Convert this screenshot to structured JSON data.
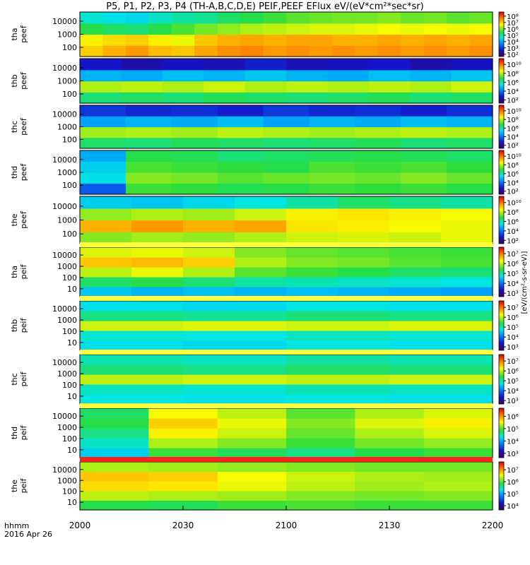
{
  "chart_data": {
    "type": "heatmap",
    "title": "P5, P1, P2, P3, P4 (TH-A,B,C,D,E) PEIF,PEEF EFlux eV/(eV*cm²*sec*sr)",
    "x_tick_labels": [
      "2000",
      "2030",
      "2100",
      "2130",
      "2200"
    ],
    "x_range_label": [
      "2000",
      "2200"
    ],
    "x_annotation": [
      "hhmm",
      "2016 Apr 26"
    ],
    "colorbar_label": "[eV/(cm²-s-sr-eV)]",
    "panels": [
      {
        "probe": "tha",
        "product": "peef",
        "y_ticks": [
          "100",
          "1000",
          "10000"
        ],
        "cbar_ticks": [
          "10²",
          "10³",
          "10⁴",
          "10⁵",
          "10⁶",
          "10⁷",
          "10⁸"
        ],
        "values": [
          [
            6.5,
            6.2,
            4.6,
            3.7
          ],
          [
            6.8,
            6.4,
            4.4,
            3.5
          ],
          [
            7.0,
            6.5,
            4.3,
            3.4
          ],
          [
            6.7,
            6.2,
            4.6,
            3.8
          ],
          [
            6.6,
            6.0,
            4.9,
            4.0
          ],
          [
            6.9,
            6.6,
            5.2,
            4.1
          ],
          [
            7.1,
            6.8,
            5.4,
            4.4
          ],
          [
            7.2,
            6.9,
            5.6,
            4.6
          ],
          [
            7.0,
            6.8,
            5.7,
            4.8
          ],
          [
            7.1,
            6.9,
            5.8,
            5.0
          ],
          [
            7.0,
            6.9,
            5.9,
            5.1
          ],
          [
            7.1,
            6.8,
            5.9,
            5.2
          ],
          [
            7.0,
            6.8,
            6.0,
            5.2
          ],
          [
            7.1,
            6.9,
            6.1,
            5.3
          ],
          [
            7.0,
            6.8,
            6.0,
            5.1
          ],
          [
            7.1,
            6.9,
            6.1,
            5.2
          ],
          [
            7.0,
            6.8,
            6.0,
            5.0
          ],
          [
            7.1,
            6.9,
            6.1,
            5.1
          ]
        ]
      },
      {
        "probe": "thb",
        "product": "peef",
        "y_ticks": [
          "100",
          "1000",
          "10000"
        ],
        "cbar_ticks": [
          "10²",
          "10⁴",
          "10⁶",
          "10⁸",
          "10¹⁰"
        ],
        "values": [
          [
            4.3,
            5.6,
            3.0,
            1.2
          ],
          [
            4.4,
            5.7,
            2.9,
            0.9
          ],
          [
            4.3,
            5.6,
            3.1,
            1.1
          ],
          [
            4.5,
            5.8,
            3.0,
            1.0
          ],
          [
            4.4,
            5.6,
            3.2,
            1.3
          ],
          [
            4.3,
            5.7,
            3.0,
            1.0
          ],
          [
            4.4,
            5.6,
            2.9,
            1.1
          ],
          [
            4.5,
            5.7,
            3.1,
            1.2
          ],
          [
            4.3,
            5.6,
            3.0,
            0.9
          ],
          [
            4.4,
            5.8,
            3.2,
            1.1
          ]
        ]
      },
      {
        "probe": "thc",
        "product": "peef",
        "y_ticks": [
          "100",
          "1000",
          "10000"
        ],
        "cbar_ticks": [
          "10²",
          "10⁴",
          "10⁶",
          "10⁸",
          "10¹⁰"
        ],
        "values": [
          [
            4.4,
            5.5,
            2.8,
            1.6
          ],
          [
            4.3,
            5.6,
            3.0,
            1.4
          ],
          [
            4.5,
            5.5,
            2.9,
            1.5
          ],
          [
            4.4,
            5.7,
            3.1,
            1.3
          ],
          [
            4.3,
            5.6,
            2.8,
            1.6
          ],
          [
            4.4,
            5.5,
            3.0,
            1.4
          ],
          [
            4.5,
            5.6,
            2.9,
            1.5
          ],
          [
            4.3,
            5.7,
            3.1,
            1.3
          ],
          [
            4.4,
            5.6,
            3.0,
            1.5
          ]
        ]
      },
      {
        "probe": "thd",
        "product": "peef",
        "y_ticks": [
          "100",
          "1000",
          "10000"
        ],
        "cbar_ticks": [
          "10²",
          "10⁴",
          "10⁶",
          "10⁸",
          "10¹⁰"
        ],
        "values": [
          [
            2.0,
            3.5,
            3.3,
            2.9
          ],
          [
            4.8,
            5.3,
            4.9,
            4.6
          ],
          [
            4.7,
            5.2,
            4.8,
            4.5
          ],
          [
            4.5,
            5.0,
            4.7,
            4.3
          ],
          [
            4.6,
            5.1,
            4.6,
            4.4
          ],
          [
            4.8,
            5.2,
            4.9,
            4.5
          ],
          [
            4.7,
            5.1,
            4.8,
            4.6
          ],
          [
            4.8,
            5.3,
            4.9,
            4.5
          ],
          [
            4.6,
            5.1,
            4.7,
            4.4
          ]
        ]
      },
      {
        "probe": "the",
        "product": "peef",
        "y_ticks": [
          "100",
          "1000",
          "10000"
        ],
        "cbar_ticks": [
          "10²",
          "10⁴",
          "10⁶",
          "10⁸",
          "10¹⁰"
        ],
        "values": [
          [
            5.3,
            6.8,
            5.4,
            3.3
          ],
          [
            5.5,
            7.0,
            5.6,
            3.2
          ],
          [
            5.4,
            6.8,
            5.5,
            3.4
          ],
          [
            5.6,
            6.9,
            5.8,
            3.6
          ],
          [
            5.8,
            6.3,
            6.2,
            4.0
          ],
          [
            5.9,
            6.2,
            6.3,
            4.4
          ],
          [
            5.8,
            6.1,
            6.2,
            4.2
          ],
          [
            6.0,
            6.0,
            6.1,
            4.0
          ]
        ]
      },
      {
        "probe": "tha",
        "product": "peif",
        "y_ticks": [
          "10",
          "100",
          "1000",
          "10000"
        ],
        "cbar_ticks": [
          "10³",
          "10⁴",
          "10⁵",
          "10⁶",
          "10⁷"
        ],
        "values": [
          [
            3.2,
            4.4,
            5.7,
            6.6,
            5.9
          ],
          [
            3.0,
            4.6,
            6.0,
            6.7,
            6.0
          ],
          [
            3.1,
            4.3,
            5.6,
            6.5,
            5.8
          ],
          [
            3.0,
            4.0,
            5.0,
            5.6,
            5.3
          ],
          [
            3.1,
            3.9,
            4.8,
            5.3,
            5.1
          ],
          [
            3.0,
            3.8,
            4.6,
            5.2,
            5.0
          ],
          [
            2.9,
            3.7,
            4.4,
            5.0,
            4.9
          ],
          [
            2.8,
            3.6,
            4.3,
            4.9,
            4.8
          ]
        ]
      },
      {
        "probe": "thb",
        "product": "peif",
        "y_ticks": [
          "10",
          "100",
          "1000",
          "10000"
        ],
        "cbar_ticks": [
          "10³",
          "10⁴",
          "10⁵",
          "10⁶",
          "10⁷"
        ],
        "values": [
          [
            3.5,
            3.7,
            5.8,
            4.2,
            3.5
          ],
          [
            3.4,
            3.6,
            5.9,
            4.1,
            3.4
          ],
          [
            3.6,
            3.8,
            5.8,
            4.3,
            3.6
          ],
          [
            3.5,
            3.7,
            5.9,
            4.2,
            3.5
          ]
        ]
      },
      {
        "probe": "thc",
        "product": "peif",
        "y_ticks": [
          "10",
          "100",
          "1000",
          "10000"
        ],
        "cbar_ticks": [
          "10³",
          "10⁴",
          "10⁵",
          "10⁶",
          "10⁷"
        ],
        "values": [
          [
            3.6,
            3.8,
            5.7,
            4.3,
            3.9
          ],
          [
            3.5,
            3.7,
            5.8,
            4.2,
            3.8
          ],
          [
            3.6,
            3.9,
            5.7,
            4.4,
            4.0
          ],
          [
            3.5,
            3.8,
            5.8,
            4.3,
            3.9
          ]
        ]
      },
      {
        "probe": "thd",
        "product": "peif",
        "y_ticks": [
          "10",
          "100",
          "1000",
          "10000"
        ],
        "cbar_ticks": [
          "10³",
          "10⁴",
          "10⁵",
          "10⁶"
        ],
        "values": [
          [
            3.3,
            3.8,
            4.2,
            4.6,
            4.4
          ],
          [
            4.8,
            5.6,
            6.2,
            6.5,
            6.1
          ],
          [
            4.5,
            5.3,
            5.8,
            6.0,
            5.7
          ],
          [
            4.2,
            4.8,
            5.1,
            5.3,
            5.0
          ],
          [
            4.6,
            5.2,
            5.6,
            5.9,
            5.6
          ],
          [
            4.8,
            5.4,
            5.9,
            6.2,
            5.9
          ]
        ]
      },
      {
        "probe": "the",
        "product": "peif",
        "y_ticks": [
          "10",
          "100",
          "1000",
          "10000"
        ],
        "cbar_ticks": [
          "10⁴",
          "10⁵",
          "10⁶",
          "10⁷"
        ],
        "values": [
          [
            4.6,
            5.7,
            6.4,
            6.6,
            5.6
          ],
          [
            4.5,
            5.6,
            6.3,
            6.5,
            5.5
          ],
          [
            4.8,
            5.5,
            6.0,
            6.1,
            5.4
          ],
          [
            4.9,
            5.3,
            5.7,
            5.8,
            5.3
          ],
          [
            4.8,
            5.2,
            5.5,
            5.6,
            5.2
          ],
          [
            4.8,
            5.3,
            5.6,
            5.5,
            5.2
          ]
        ]
      }
    ]
  }
}
